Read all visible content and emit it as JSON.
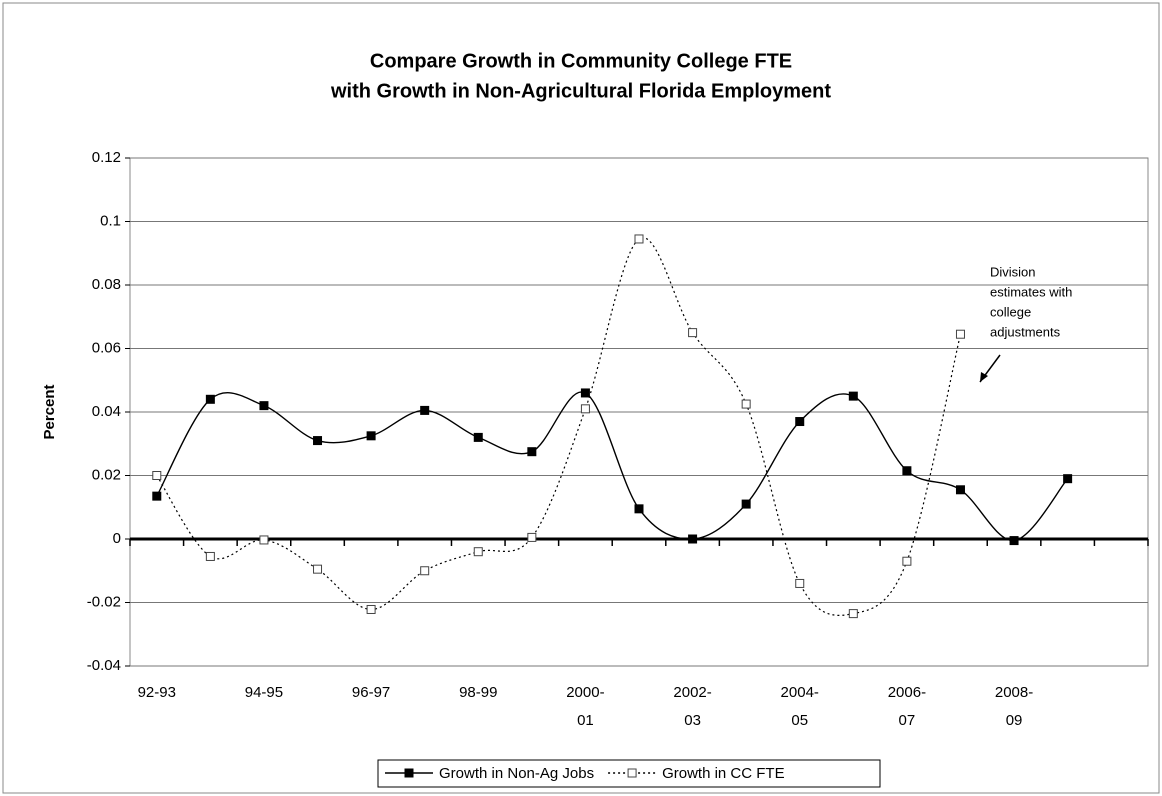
{
  "chart_data": {
    "type": "line",
    "title": [
      "Compare Growth in Community College FTE",
      "with Growth in Non-Agricultural Florida Employment"
    ],
    "y_label": "Percent",
    "categories": [
      "92-93",
      null,
      "94-95",
      null,
      "96-97",
      null,
      "98-99",
      null,
      "2000-01",
      null,
      "2002-03",
      null,
      "2004-05",
      null,
      "2006-07",
      null,
      "2008-09",
      null,
      null
    ],
    "series": [
      {
        "name": "Growth in Non-Ag Jobs",
        "color": "#000000",
        "style": "solid",
        "marker": "filled-square",
        "values": [
          0.0135,
          0.044,
          0.042,
          0.031,
          0.0325,
          0.0405,
          0.032,
          0.0275,
          0.046,
          0.0095,
          0,
          0.011,
          0.037,
          0.045,
          0.0215,
          0.0155,
          -0.0005,
          0.019,
          null
        ]
      },
      {
        "name": "Growth in CC FTE",
        "color": "#000000",
        "style": "dotted",
        "marker": "open-square",
        "values": [
          0.02,
          -0.0055,
          -0.0003,
          -0.0095,
          -0.0222,
          -0.01,
          -0.004,
          0.0005,
          0.041,
          0.0945,
          0.065,
          0.0425,
          -0.014,
          -0.0235,
          -0.007,
          0.0645,
          null,
          null,
          null
        ]
      }
    ],
    "annotation": [
      "Division",
      "estimates with",
      "college",
      "adjustments"
    ],
    "ylim": [
      -0.04,
      0.12
    ],
    "yticks": [
      -0.04,
      -0.02,
      0,
      0.02,
      0.04,
      0.06,
      0.08,
      0.1,
      0.12
    ],
    "grid": true,
    "smooth": true,
    "legend": "bottom"
  }
}
